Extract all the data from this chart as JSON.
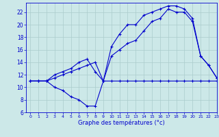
{
  "xlabel": "Graphe des températures (°c)",
  "xlim": [
    -0.5,
    23
  ],
  "ylim": [
    6,
    23.5
  ],
  "yticks": [
    6,
    8,
    10,
    12,
    14,
    16,
    18,
    20,
    22
  ],
  "xticks": [
    0,
    1,
    2,
    3,
    4,
    5,
    6,
    7,
    8,
    9,
    10,
    11,
    12,
    13,
    14,
    15,
    16,
    17,
    18,
    19,
    20,
    21,
    22,
    23
  ],
  "background_color": "#cce8e8",
  "grid_color": "#aacccc",
  "line_color": "#0000cc",
  "curve_min_x": [
    0,
    1,
    2,
    3,
    4,
    5,
    6,
    7,
    8,
    9,
    10,
    11,
    12,
    13,
    14,
    15,
    16,
    17,
    18,
    19,
    20,
    21,
    22,
    23
  ],
  "curve_min_y": [
    11.0,
    11.0,
    11.0,
    10.0,
    9.5,
    8.5,
    8.0,
    7.0,
    7.0,
    11.0,
    11.0,
    11.0,
    11.0,
    11.0,
    11.0,
    11.0,
    11.0,
    11.0,
    11.0,
    11.0,
    11.0,
    11.0,
    11.0,
    11.0
  ],
  "curve_mean_x": [
    0,
    1,
    2,
    3,
    4,
    5,
    6,
    7,
    8,
    9,
    10,
    11,
    12,
    13,
    14,
    15,
    16,
    17,
    18,
    19,
    20,
    21,
    22,
    23
  ],
  "curve_mean_y": [
    11.0,
    11.0,
    11.0,
    11.5,
    12.0,
    12.5,
    13.0,
    13.5,
    14.0,
    11.0,
    15.0,
    16.0,
    17.0,
    17.5,
    19.0,
    20.5,
    21.0,
    22.5,
    22.0,
    22.0,
    20.5,
    15.0,
    13.5,
    11.5
  ],
  "curve_max_x": [
    0,
    1,
    2,
    3,
    4,
    5,
    6,
    7,
    8,
    9,
    10,
    11,
    12,
    13,
    14,
    15,
    16,
    17,
    18,
    19,
    20,
    21,
    22,
    23
  ],
  "curve_max_y": [
    11.0,
    11.0,
    11.0,
    12.0,
    12.5,
    13.0,
    14.0,
    14.5,
    12.5,
    11.0,
    16.5,
    18.5,
    20.0,
    20.0,
    21.5,
    22.0,
    22.5,
    23.0,
    23.0,
    22.5,
    21.0,
    15.0,
    13.5,
    11.5
  ]
}
